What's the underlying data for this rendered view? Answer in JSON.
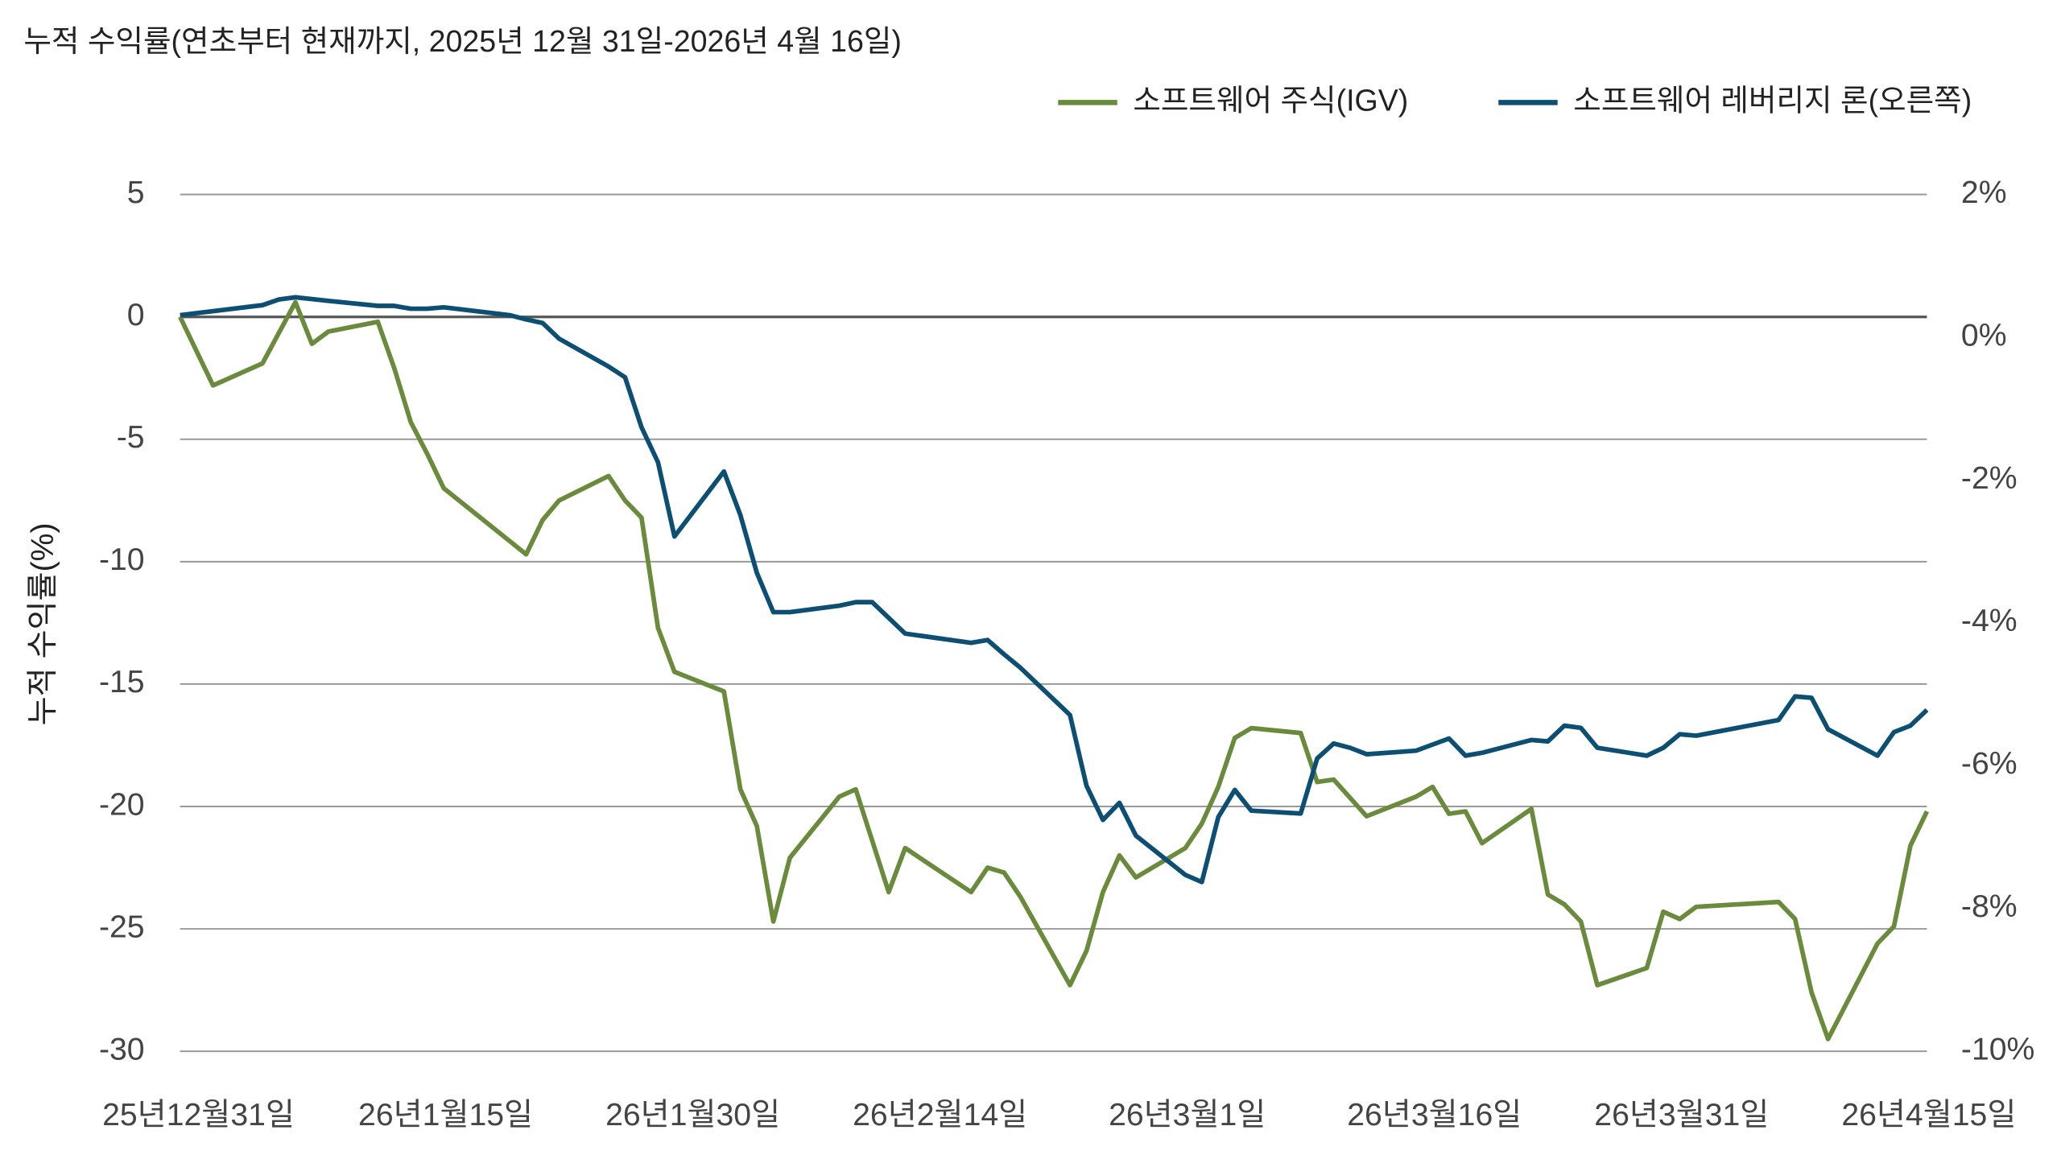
{
  "chart_data": {
    "type": "line",
    "title": "누적 수익률(연초부터 현재까지, 2025년 12월 31일-2026년 4월 16일)",
    "y_label": "누적 수익률(%)",
    "xlim": [
      "2025-12-31",
      "2026-04-16"
    ],
    "xticks": [
      {
        "value": "2025-12-31",
        "label": "25년12월31일"
      },
      {
        "value": "2026-01-15",
        "label": "26년1월15일"
      },
      {
        "value": "2026-01-30",
        "label": "26년1월30일"
      },
      {
        "value": "2026-02-14",
        "label": "26년2월14일"
      },
      {
        "value": "2026-03-01",
        "label": "26년3월1일"
      },
      {
        "value": "2026-03-16",
        "label": "26년3월16일"
      },
      {
        "value": "2026-03-31",
        "label": "26년3월31일"
      },
      {
        "value": "2026-04-15",
        "label": "26년4월15일"
      }
    ],
    "ylim": [
      -30,
      5
    ],
    "yticks": [
      -30,
      -25,
      -20,
      -15,
      -10,
      -5,
      0,
      5
    ],
    "y2lim": [
      -10,
      2
    ],
    "y2ticks": [
      {
        "value": -10,
        "label": "-10%"
      },
      {
        "value": -8,
        "label": "-8%"
      },
      {
        "value": -6,
        "label": "-6%"
      },
      {
        "value": -4,
        "label": "-4%"
      },
      {
        "value": -2,
        "label": "-2%"
      },
      {
        "value": 0,
        "label": "0%"
      },
      {
        "value": 2,
        "label": "2%"
      }
    ],
    "grid": true,
    "legend": "top-right",
    "series": [
      {
        "name": "소프트웨어 주식(IGV)",
        "color": "#6a8a3c",
        "x": [
          "2025-12-31",
          "2026-01-02",
          "2026-01-05",
          "2026-01-07",
          "2026-01-08",
          "2026-01-09",
          "2026-01-12",
          "2026-01-13",
          "2026-01-14",
          "2026-01-15",
          "2026-01-16",
          "2026-01-21",
          "2026-01-22",
          "2026-01-23",
          "2026-01-26",
          "2026-01-27",
          "2026-01-28",
          "2026-01-29",
          "2026-01-30",
          "2026-02-02",
          "2026-02-03",
          "2026-02-04",
          "2026-02-05",
          "2026-02-06",
          "2026-02-09",
          "2026-02-10",
          "2026-02-12",
          "2026-02-13",
          "2026-02-17",
          "2026-02-18",
          "2026-02-19",
          "2026-02-20",
          "2026-02-23",
          "2026-02-24",
          "2026-02-25",
          "2026-02-26",
          "2026-02-27",
          "2026-03-02",
          "2026-03-03",
          "2026-03-04",
          "2026-03-05",
          "2026-03-06",
          "2026-03-09",
          "2026-03-10",
          "2026-03-11",
          "2026-03-13",
          "2026-03-16",
          "2026-03-17",
          "2026-03-18",
          "2026-03-19",
          "2026-03-20",
          "2026-03-23",
          "2026-03-24",
          "2026-03-25",
          "2026-03-26",
          "2026-03-27",
          "2026-03-30",
          "2026-03-31",
          "2026-04-01",
          "2026-04-02",
          "2026-04-07",
          "2026-04-08",
          "2026-04-09",
          "2026-04-10",
          "2026-04-13",
          "2026-04-14",
          "2026-04-15",
          "2026-04-16"
        ],
        "values": [
          0,
          -2.8,
          -1.9,
          0.6,
          -1.1,
          -0.6,
          -0.2,
          -2.1,
          -4.3,
          -5.6,
          -7.0,
          -9.7,
          -8.3,
          -7.5,
          -6.5,
          -7.5,
          -8.2,
          -12.7,
          -14.5,
          -15.3,
          -19.3,
          -20.8,
          -24.7,
          -22.1,
          -19.6,
          -19.3,
          -23.5,
          -21.7,
          -23.5,
          -22.5,
          -22.7,
          -23.7,
          -27.3,
          -25.9,
          -23.5,
          -22.0,
          -22.9,
          -21.7,
          -20.7,
          -19.2,
          -17.2,
          -16.8,
          -17.0,
          -19.0,
          -18.9,
          -20.4,
          -19.6,
          -19.2,
          -20.3,
          -20.2,
          -21.5,
          -20.1,
          -23.6,
          -24.0,
          -24.7,
          -27.3,
          -26.6,
          -24.3,
          -24.6,
          -24.1,
          -23.9,
          -24.6,
          -27.6,
          -29.5,
          -25.6,
          -24.9,
          -21.6,
          -20.2
        ]
      },
      {
        "name": "소프트웨어 레버리지 론(오른쪽)",
        "color": "#0d4f73",
        "axis": "y2",
        "x": [
          "2025-12-31",
          "2026-01-05",
          "2026-01-06",
          "2026-01-07",
          "2026-01-09",
          "2026-01-12",
          "2026-01-13",
          "2026-01-14",
          "2026-01-15",
          "2026-01-16",
          "2026-01-20",
          "2026-01-21",
          "2026-01-22",
          "2026-01-23",
          "2026-01-26",
          "2026-01-27",
          "2026-01-28",
          "2026-01-29",
          "2026-01-30",
          "2026-02-02",
          "2026-02-03",
          "2026-02-04",
          "2026-02-05",
          "2026-02-06",
          "2026-02-09",
          "2026-02-10",
          "2026-02-11",
          "2026-02-13",
          "2026-02-17",
          "2026-02-18",
          "2026-02-19",
          "2026-02-20",
          "2026-02-23",
          "2026-02-24",
          "2026-02-25",
          "2026-02-26",
          "2026-02-27",
          "2026-03-02",
          "2026-03-03",
          "2026-03-04",
          "2026-03-05",
          "2026-03-06",
          "2026-03-09",
          "2026-03-10",
          "2026-03-11",
          "2026-03-12",
          "2026-03-13",
          "2026-03-16",
          "2026-03-18",
          "2026-03-19",
          "2026-03-20",
          "2026-03-23",
          "2026-03-24",
          "2026-03-25",
          "2026-03-26",
          "2026-03-27",
          "2026-03-30",
          "2026-03-31",
          "2026-04-01",
          "2026-04-02",
          "2026-04-07",
          "2026-04-08",
          "2026-04-09",
          "2026-04-10",
          "2026-04-13",
          "2026-04-14",
          "2026-04-15",
          "2026-04-16"
        ],
        "values": [
          0.31,
          0.45,
          0.53,
          0.56,
          0.51,
          0.44,
          0.44,
          0.4,
          0.4,
          0.42,
          0.31,
          0.25,
          0.2,
          -0.02,
          -0.41,
          -0.56,
          -1.26,
          -1.75,
          -2.79,
          -1.88,
          -2.49,
          -3.3,
          -3.85,
          -3.85,
          -3.76,
          -3.71,
          -3.71,
          -4.15,
          -4.28,
          -4.24,
          -4.44,
          -4.63,
          -5.29,
          -6.28,
          -6.76,
          -6.52,
          -6.98,
          -7.53,
          -7.63,
          -6.72,
          -6.34,
          -6.63,
          -6.67,
          -5.9,
          -5.69,
          -5.75,
          -5.84,
          -5.79,
          -5.62,
          -5.86,
          -5.82,
          -5.64,
          -5.66,
          -5.44,
          -5.47,
          -5.75,
          -5.86,
          -5.75,
          -5.56,
          -5.58,
          -5.36,
          -5.03,
          -5.05,
          -5.49,
          -5.86,
          -5.53,
          -5.44,
          -5.22
        ]
      }
    ]
  }
}
